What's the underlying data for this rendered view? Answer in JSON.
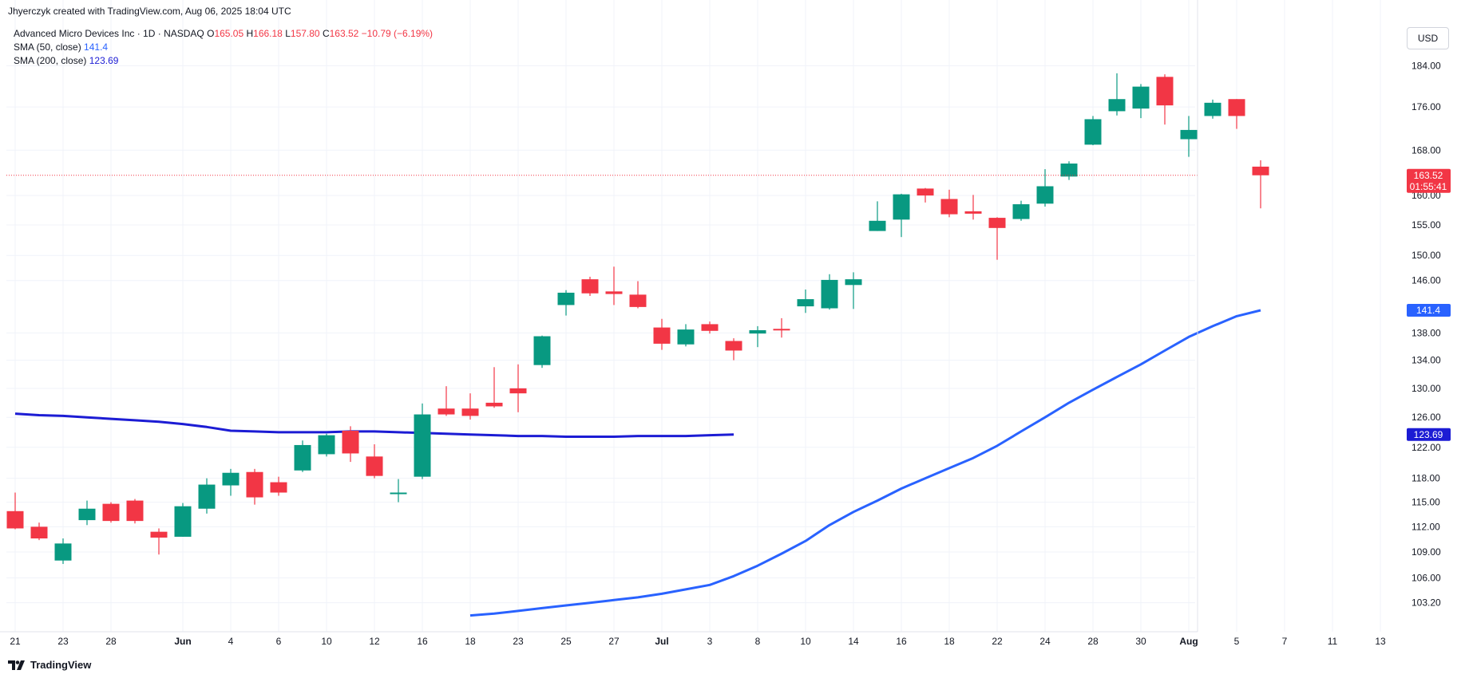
{
  "header": {
    "attribution": "Jhyerczyk created with TradingView.com, Aug 06, 2025 18:04 UTC"
  },
  "legend": {
    "symbol": "Advanced Micro Devices Inc · 1D · NASDAQ",
    "o_label": "O",
    "o_value": "165.05",
    "h_label": "H",
    "h_value": "166.18",
    "l_label": "L",
    "l_value": "157.80",
    "c_label": "C",
    "c_value": "163.52",
    "change": "−10.79 (−6.19%)",
    "sma50_label": "SMA (50, close)",
    "sma50_value": "141.4",
    "sma200_label": "SMA (200, close)",
    "sma200_value": "123.69"
  },
  "currency": "USD",
  "footer": {
    "brand": "TradingView"
  },
  "colors": {
    "up": "#089981",
    "down": "#f23645",
    "sma50": "#2962ff",
    "sma200": "#1c1cd4",
    "grid": "#f0f3fa"
  },
  "price_tag": {
    "value": "163.52",
    "countdown": "01:55:41"
  },
  "sma50_tag": "141.4",
  "sma200_tag": "123.69",
  "chart_data": {
    "type": "candlestick",
    "title": "",
    "ylim": [
      101.5,
      190
    ],
    "y_scale": "log",
    "y_ticks": [
      "184.00",
      "176.00",
      "168.00",
      "160.00",
      "155.00",
      "150.00",
      "146.00",
      "138.00",
      "134.00",
      "130.00",
      "126.00",
      "122.00",
      "118.00",
      "115.00",
      "112.00",
      "109.00",
      "106.00",
      "103.20"
    ],
    "x_ticks": [
      "21",
      "23",
      "28",
      "Jun",
      "4",
      "6",
      "10",
      "12",
      "16",
      "18",
      "23",
      "25",
      "27",
      "Jul",
      "3",
      "8",
      "10",
      "14",
      "16",
      "18",
      "22",
      "24",
      "28",
      "30",
      "Aug",
      "5",
      "7",
      "11",
      "13"
    ],
    "grid": true,
    "candles": [
      {
        "date": "2025-05-21",
        "o": 113.9,
        "h": 116.2,
        "l": 111.7,
        "c": 111.8
      },
      {
        "date": "2025-05-22",
        "o": 112.0,
        "h": 112.5,
        "l": 110.4,
        "c": 110.6
      },
      {
        "date": "2025-05-23",
        "o": 108.0,
        "h": 110.6,
        "l": 107.6,
        "c": 110.0
      },
      {
        "date": "2025-05-27",
        "o": 112.8,
        "h": 115.2,
        "l": 112.2,
        "c": 114.2
      },
      {
        "date": "2025-05-28",
        "o": 114.8,
        "h": 115.0,
        "l": 112.5,
        "c": 112.7
      },
      {
        "date": "2025-05-29",
        "o": 115.2,
        "h": 115.4,
        "l": 112.4,
        "c": 112.7
      },
      {
        "date": "2025-05-30",
        "o": 111.4,
        "h": 111.8,
        "l": 108.7,
        "c": 110.7
      },
      {
        "date": "2025-06-02",
        "o": 110.8,
        "h": 114.9,
        "l": 110.8,
        "c": 114.5
      },
      {
        "date": "2025-06-03",
        "o": 114.2,
        "h": 118.0,
        "l": 113.6,
        "c": 117.2
      },
      {
        "date": "2025-06-04",
        "o": 117.1,
        "h": 119.2,
        "l": 115.8,
        "c": 118.7
      },
      {
        "date": "2025-06-05",
        "o": 118.8,
        "h": 119.2,
        "l": 114.7,
        "c": 115.6
      },
      {
        "date": "2025-06-06",
        "o": 117.5,
        "h": 118.2,
        "l": 115.8,
        "c": 116.2
      },
      {
        "date": "2025-06-09",
        "o": 119.0,
        "h": 122.9,
        "l": 118.8,
        "c": 122.3
      },
      {
        "date": "2025-06-10",
        "o": 121.1,
        "h": 123.8,
        "l": 120.8,
        "c": 123.6
      },
      {
        "date": "2025-06-11",
        "o": 124.2,
        "h": 124.8,
        "l": 120.1,
        "c": 121.2
      },
      {
        "date": "2025-06-12",
        "o": 120.8,
        "h": 122.4,
        "l": 118.0,
        "c": 118.3
      },
      {
        "date": "2025-06-13",
        "o": 116.2,
        "h": 117.9,
        "l": 115.0,
        "c": 116.2
      },
      {
        "date": "2025-06-16",
        "o": 118.2,
        "h": 127.9,
        "l": 117.9,
        "c": 126.4
      },
      {
        "date": "2025-06-17",
        "o": 127.2,
        "h": 130.3,
        "l": 126.2,
        "c": 126.4
      },
      {
        "date": "2025-06-18",
        "o": 127.2,
        "h": 129.3,
        "l": 125.7,
        "c": 126.2
      },
      {
        "date": "2025-06-20",
        "o": 128.0,
        "h": 133.0,
        "l": 127.3,
        "c": 127.5
      },
      {
        "date": "2025-06-23",
        "o": 130.0,
        "h": 133.4,
        "l": 126.7,
        "c": 129.3
      },
      {
        "date": "2025-06-24",
        "o": 133.3,
        "h": 137.6,
        "l": 132.9,
        "c": 137.5
      },
      {
        "date": "2025-06-25",
        "o": 142.2,
        "h": 144.5,
        "l": 140.6,
        "c": 144.1
      },
      {
        "date": "2025-06-26",
        "o": 146.2,
        "h": 146.6,
        "l": 143.6,
        "c": 144.0
      },
      {
        "date": "2025-06-27",
        "o": 144.3,
        "h": 148.2,
        "l": 142.2,
        "c": 143.9
      },
      {
        "date": "2025-06-30",
        "o": 143.8,
        "h": 145.9,
        "l": 141.7,
        "c": 141.9
      },
      {
        "date": "2025-07-01",
        "o": 138.8,
        "h": 140.1,
        "l": 135.5,
        "c": 136.4
      },
      {
        "date": "2025-07-02",
        "o": 136.3,
        "h": 139.3,
        "l": 136.0,
        "c": 138.5
      },
      {
        "date": "2025-07-03",
        "o": 139.3,
        "h": 139.7,
        "l": 137.9,
        "c": 138.3
      },
      {
        "date": "2025-07-07",
        "o": 136.8,
        "h": 137.2,
        "l": 134.0,
        "c": 135.4
      },
      {
        "date": "2025-07-08",
        "o": 137.9,
        "h": 139.0,
        "l": 135.9,
        "c": 138.4
      },
      {
        "date": "2025-07-09",
        "o": 138.6,
        "h": 140.2,
        "l": 137.3,
        "c": 138.5
      },
      {
        "date": "2025-07-10",
        "o": 142.0,
        "h": 144.6,
        "l": 141.0,
        "c": 143.1
      },
      {
        "date": "2025-07-11",
        "o": 141.7,
        "h": 147.0,
        "l": 141.5,
        "c": 146.1
      },
      {
        "date": "2025-07-14",
        "o": 145.3,
        "h": 147.3,
        "l": 141.6,
        "c": 146.2
      },
      {
        "date": "2025-07-15",
        "o": 154.0,
        "h": 159.0,
        "l": 154.0,
        "c": 155.7
      },
      {
        "date": "2025-07-16",
        "o": 155.9,
        "h": 160.3,
        "l": 153.0,
        "c": 160.2
      },
      {
        "date": "2025-07-17",
        "o": 161.2,
        "h": 161.3,
        "l": 158.8,
        "c": 160.0
      },
      {
        "date": "2025-07-18",
        "o": 159.4,
        "h": 161.0,
        "l": 156.3,
        "c": 156.8
      },
      {
        "date": "2025-07-21",
        "o": 157.3,
        "h": 160.1,
        "l": 155.9,
        "c": 156.9
      },
      {
        "date": "2025-07-22",
        "o": 156.2,
        "h": 156.3,
        "l": 149.3,
        "c": 154.5
      },
      {
        "date": "2025-07-23",
        "o": 156.0,
        "h": 159.1,
        "l": 155.7,
        "c": 158.5
      },
      {
        "date": "2025-07-24",
        "o": 158.6,
        "h": 164.6,
        "l": 158.1,
        "c": 161.6
      },
      {
        "date": "2025-07-25",
        "o": 163.3,
        "h": 166.0,
        "l": 162.7,
        "c": 165.6
      },
      {
        "date": "2025-07-28",
        "o": 169.0,
        "h": 174.3,
        "l": 168.9,
        "c": 173.7
      },
      {
        "date": "2025-07-29",
        "o": 175.2,
        "h": 182.5,
        "l": 174.4,
        "c": 177.5
      },
      {
        "date": "2025-07-30",
        "o": 175.7,
        "h": 180.4,
        "l": 173.9,
        "c": 179.9
      },
      {
        "date": "2025-07-31",
        "o": 181.8,
        "h": 182.3,
        "l": 172.7,
        "c": 176.3
      },
      {
        "date": "2025-08-01",
        "o": 170.0,
        "h": 174.3,
        "l": 166.8,
        "c": 171.7
      },
      {
        "date": "2025-08-04",
        "o": 174.3,
        "h": 177.4,
        "l": 173.8,
        "c": 176.8
      },
      {
        "date": "2025-08-05",
        "o": 177.5,
        "h": 177.5,
        "l": 171.9,
        "c": 174.3
      },
      {
        "date": "2025-08-06",
        "o": 165.05,
        "h": 166.18,
        "l": 157.8,
        "c": 163.52
      }
    ],
    "series": [
      {
        "name": "SMA (50, close)",
        "values": [
          101.8,
          102.0,
          102.3,
          102.6,
          102.9,
          103.2,
          103.5,
          103.8,
          104.2,
          104.7,
          105.2,
          106.2,
          107.4,
          108.8,
          110.3,
          112.2,
          113.8,
          115.2,
          116.7,
          118.0,
          119.3,
          120.6,
          122.2,
          124.1,
          126.0,
          128.0,
          129.8,
          131.6,
          133.4,
          135.4,
          137.4,
          139.0,
          140.5,
          141.4
        ]
      },
      {
        "name": "SMA (200, close)",
        "values": [
          126.5,
          126.3,
          126.2,
          126.0,
          125.8,
          125.6,
          125.4,
          125.1,
          124.7,
          124.2,
          124.1,
          124.0,
          124.0,
          124.0,
          124.1,
          124.1,
          124.0,
          123.9,
          123.8,
          123.7,
          123.6,
          123.5,
          123.5,
          123.4,
          123.4,
          123.4,
          123.5,
          123.5,
          123.5,
          123.6,
          123.69
        ]
      }
    ]
  }
}
